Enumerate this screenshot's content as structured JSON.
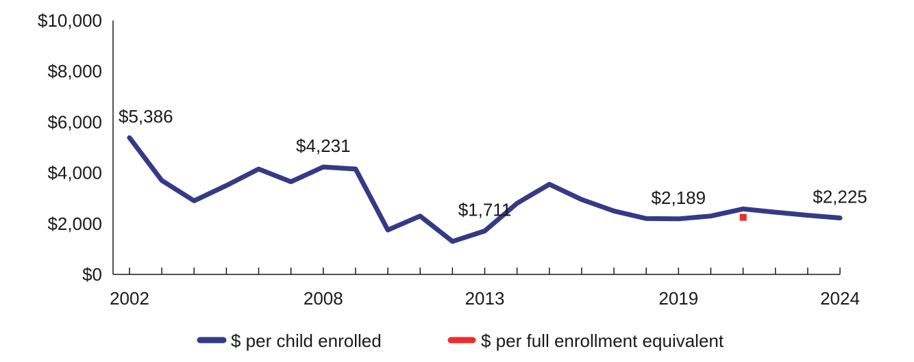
{
  "chart_data": {
    "type": "line",
    "title": "",
    "xlabel": "",
    "ylabel": "",
    "ylim": [
      0,
      10000
    ],
    "xlim": [
      2002,
      2024
    ],
    "y_ticks": [
      0,
      2000,
      4000,
      6000,
      8000,
      10000
    ],
    "y_tick_labels": [
      "$0",
      "$2,000",
      "$4,000",
      "$6,000",
      "$8,000",
      "$10,000"
    ],
    "x_ticks_labeled": [
      2002,
      2008,
      2013,
      2019,
      2024
    ],
    "x_tick_labels": [
      "2002",
      "2008",
      "2013",
      "2019",
      "2024"
    ],
    "grid": false,
    "legend_position": "bottom",
    "series": [
      {
        "name": "$ per child enrolled",
        "color": "#343a86",
        "style": "line",
        "x": [
          2002,
          2003,
          2004,
          2005,
          2006,
          2007,
          2008,
          2009,
          2010,
          2011,
          2012,
          2013,
          2014,
          2015,
          2016,
          2017,
          2018,
          2019,
          2020,
          2021,
          2022,
          2023,
          2024
        ],
        "values": [
          5386,
          3700,
          2900,
          3500,
          4150,
          3650,
          4231,
          4150,
          1750,
          2300,
          1300,
          1711,
          2800,
          3550,
          2950,
          2500,
          2200,
          2189,
          2300,
          2580,
          2450,
          2330,
          2225
        ]
      },
      {
        "name": "$ per full enrollment equivalent",
        "color": "#ee2b2e",
        "style": "marker",
        "x": [
          2021
        ],
        "values": [
          2250
        ]
      }
    ],
    "annotations": [
      {
        "x": 2002,
        "text": "$5,386"
      },
      {
        "x": 2008,
        "text": "$4,231"
      },
      {
        "x": 2013,
        "text": "$1,711"
      },
      {
        "x": 2019,
        "text": "$2,189"
      },
      {
        "x": 2024,
        "text": "$2,225"
      }
    ]
  },
  "legend": {
    "items": [
      {
        "label": "$ per child enrolled",
        "color": "#343a86"
      },
      {
        "label": "$ per full enrollment equivalent",
        "color": "#ee2b2e"
      }
    ]
  }
}
